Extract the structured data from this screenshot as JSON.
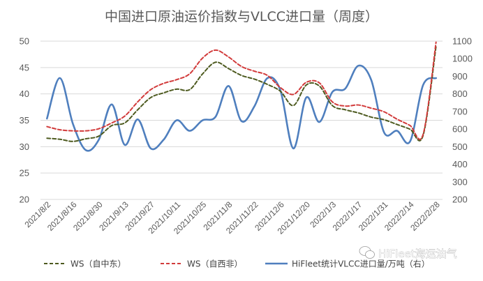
{
  "chart_data": {
    "type": "line",
    "title": "中国进口原油运价指数与VLCC进口量（周度）",
    "x": [
      "2021/8/2",
      "2021/8/9",
      "2021/8/16",
      "2021/8/23",
      "2021/8/30",
      "2021/9/6",
      "2021/9/13",
      "2021/9/20",
      "2021/9/27",
      "2021/10/4",
      "2021/10/11",
      "2021/10/18",
      "2021/10/25",
      "2021/11/1",
      "2021/11/8",
      "2021/11/15",
      "2021/11/22",
      "2021/11/29",
      "2021/12/6",
      "2021/12/13",
      "2021/12/20",
      "2021/12/27",
      "2022/1/3",
      "2022/1/10",
      "2022/1/17",
      "2022/1/24",
      "2022/1/31",
      "2022/2/7",
      "2022/2/14",
      "2022/2/21",
      "2022/2/28"
    ],
    "xticklabels": [
      "2021/8/2",
      "2021/8/16",
      "2021/8/30",
      "2021/9/13",
      "2021/9/27",
      "2021/10/11",
      "2021/10/25",
      "2021/11/8",
      "2021/11/22",
      "2021/12/6",
      "2021/12/20",
      "2022/1/3",
      "2022/1/17",
      "2022/1/31",
      "2022/2/14",
      "2022/2/28"
    ],
    "y_left": {
      "ylim": [
        20,
        50
      ],
      "ticks": [
        "20",
        "25",
        "30",
        "35",
        "40",
        "45",
        "50"
      ]
    },
    "y_right": {
      "ylim": [
        200,
        1100
      ],
      "ticks": [
        "200",
        "300",
        "400",
        "500",
        "600",
        "700",
        "800",
        "900",
        "1000",
        "1100"
      ]
    },
    "grid": true,
    "legend_position": "bottom",
    "series": [
      {
        "name": "WS（自中东）",
        "axis": "left",
        "color": "#4d5a1f",
        "dash": true,
        "values": [
          31.6,
          31.4,
          31.0,
          31.5,
          32.0,
          34.0,
          34.5,
          37.0,
          39.3,
          40.2,
          40.9,
          40.8,
          43.8,
          46.0,
          44.8,
          43.5,
          42.8,
          41.8,
          40.5,
          37.8,
          41.7,
          41.5,
          37.8,
          37.0,
          36.4,
          35.6,
          35.1,
          34.2,
          33.3,
          32.1,
          49.0
        ]
      },
      {
        "name": "WS（自西非）",
        "axis": "left",
        "color": "#d23b3b",
        "dash": true,
        "values": [
          33.8,
          33.2,
          33.0,
          33.0,
          33.4,
          34.5,
          35.8,
          38.5,
          40.8,
          42.0,
          42.7,
          43.8,
          46.8,
          48.3,
          47.0,
          45.2,
          44.3,
          43.5,
          41.2,
          39.9,
          42.2,
          42.1,
          38.5,
          37.7,
          37.9,
          37.3,
          36.6,
          35.2,
          34.0,
          32.3,
          49.8
        ]
      },
      {
        "name": "HiFleet统计VLCC进口量/万吨（右）",
        "axis": "right",
        "color": "#4f7fbe",
        "dash": false,
        "values": [
          660,
          890,
          630,
          480,
          540,
          740,
          510,
          655,
          490,
          540,
          650,
          590,
          650,
          670,
          845,
          645,
          730,
          890,
          820,
          490,
          780,
          640,
          810,
          830,
          960,
          880,
          580,
          590,
          530,
          850,
          890
        ]
      }
    ],
    "watermark": "HiFleet海运油气"
  }
}
